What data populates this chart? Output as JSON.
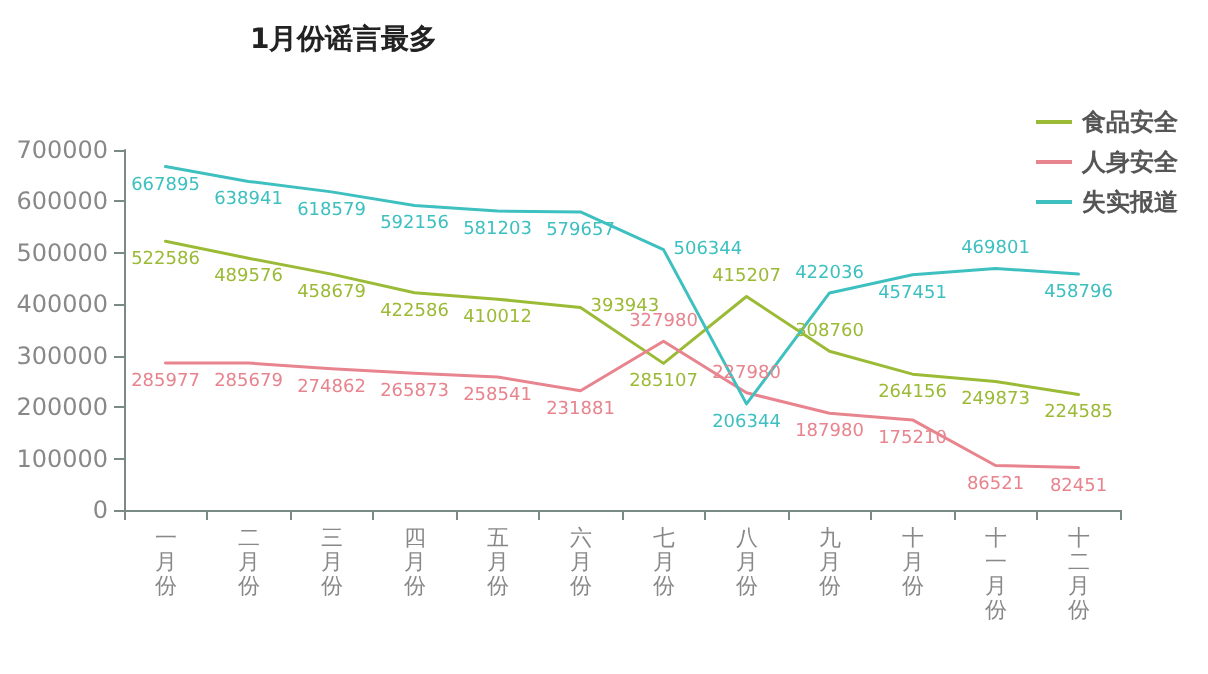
{
  "chart_data": {
    "type": "line",
    "title": "1月份谣言最多",
    "categories": [
      "一月份",
      "二月份",
      "三月份",
      "四月份",
      "五月份",
      "六月份",
      "七月份",
      "八月份",
      "九月份",
      "十月份",
      "十一月份",
      "十二月份"
    ],
    "series": [
      {
        "name": "食品安全",
        "color": "#9bbb36",
        "values": [
          522586,
          489576,
          458679,
          422586,
          410012,
          393943,
          285107,
          415207,
          308760,
          264156,
          249873,
          224585
        ]
      },
      {
        "name": "人身安全",
        "color": "#e8848e",
        "values": [
          285977,
          285679,
          274862,
          265873,
          258541,
          231881,
          327980,
          227980,
          187980,
          175210,
          86521,
          82451
        ]
      },
      {
        "name": "失实报道",
        "color": "#3fc0c0",
        "values": [
          667895,
          638941,
          618579,
          592156,
          581203,
          579657,
          506344,
          206344,
          422036,
          457451,
          469801,
          458796
        ]
      }
    ],
    "ylim": [
      0,
      700000
    ],
    "yticks": [
      0,
      100000,
      200000,
      300000,
      400000,
      500000,
      600000,
      700000
    ],
    "grid": false,
    "legend": "top right",
    "data_labels": true,
    "marker": "none",
    "line_style": "solid"
  }
}
